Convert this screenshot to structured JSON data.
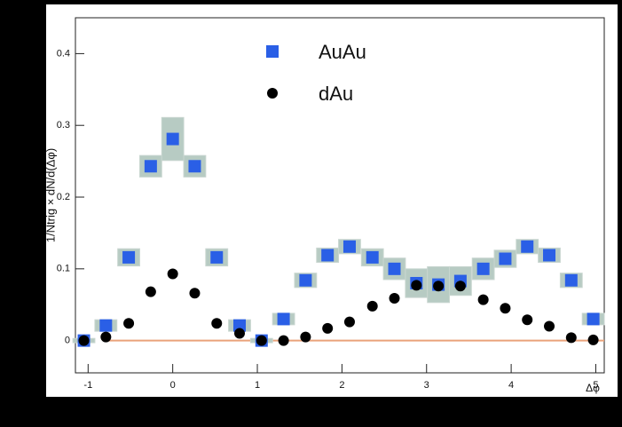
{
  "chart_data": {
    "type": "scatter",
    "y_label": "1/Ntrig × dN/d(Δφ)",
    "x_label": "Δφ",
    "x": [
      -1.05,
      -0.79,
      -0.52,
      -0.26,
      0,
      0.26,
      0.52,
      0.79,
      1.05,
      1.31,
      1.57,
      1.83,
      2.09,
      2.36,
      2.62,
      2.88,
      3.14,
      3.4,
      3.67,
      3.93,
      4.19,
      4.45,
      4.71,
      4.97
    ],
    "series": [
      {
        "name": "AuAu",
        "color": "#2a5fe6",
        "marker": "square",
        "band_color": "#b7cbc3",
        "values": [
          0,
          0.021,
          0.116,
          0.243,
          0.281,
          0.243,
          0.116,
          0.021,
          0,
          0.03,
          0.084,
          0.119,
          0.131,
          0.116,
          0.1,
          0.08,
          0.078,
          0.083,
          0.1,
          0.114,
          0.131,
          0.119,
          0.084,
          0.03
        ],
        "errors": [
          0.003,
          0.008,
          0.012,
          0.015,
          0.03,
          0.015,
          0.012,
          0.008,
          0.003,
          0.008,
          0.01,
          0.01,
          0.01,
          0.012,
          0.015,
          0.02,
          0.025,
          0.02,
          0.015,
          0.012,
          0.01,
          0.01,
          0.01,
          0.008
        ]
      },
      {
        "name": "dAu",
        "color": "#000000",
        "marker": "circle",
        "values": [
          0,
          0.005,
          0.024,
          0.068,
          0.093,
          0.066,
          0.024,
          0.01,
          0,
          0,
          0.005,
          0.017,
          0.026,
          0.048,
          0.059,
          0.077,
          0.076,
          0.076,
          0.057,
          0.045,
          0.029,
          0.02,
          0.004,
          0.001
        ]
      }
    ],
    "reference_line": {
      "value": 0,
      "color": "#e9a27a"
    },
    "xlim": [
      -1.15,
      5.1
    ],
    "ylim": [
      -0.045,
      0.45
    ],
    "xticks": [
      -1,
      0,
      1,
      2,
      3,
      4,
      5
    ],
    "yticks": [
      0,
      0.1,
      0.2,
      0.3,
      0.4
    ],
    "grid": false,
    "legend": "top-center"
  }
}
